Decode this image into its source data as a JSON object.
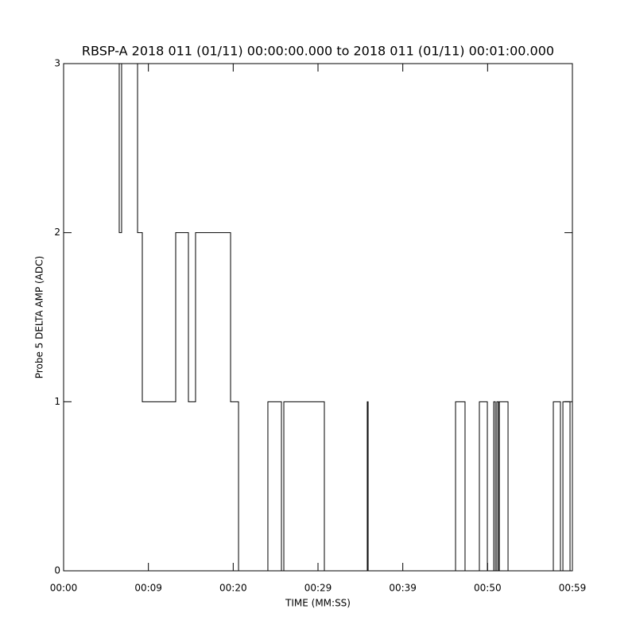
{
  "chart_data": {
    "type": "line",
    "title": "RBSP-A 2018 011 (01/11) 00:00:00.000 to 2018 011 (01/11) 00:01:00.000",
    "x_label": "TIME (MM:SS)",
    "y_label": "Probe 5 DELTA AMP (ADC)",
    "xlim": [
      0,
      60
    ],
    "ylim": [
      0,
      3
    ],
    "xticks": [
      {
        "value": 0,
        "label": "00:00"
      },
      {
        "value": 10,
        "label": "00:09"
      },
      {
        "value": 20,
        "label": "00:20"
      },
      {
        "value": 30,
        "label": "00:29"
      },
      {
        "value": 40,
        "label": "00:39"
      },
      {
        "value": 50,
        "label": "00:50"
      },
      {
        "value": 60,
        "label": "00:59"
      }
    ],
    "yticks": [
      0,
      1,
      2,
      3
    ],
    "color": "#000000",
    "x": [
      0,
      6.56,
      6.56,
      6.84,
      6.84,
      8.72,
      8.72,
      9.28,
      9.28,
      13.22,
      13.22,
      14.72,
      14.72,
      15.56,
      15.56,
      19.69,
      19.69,
      20.63,
      20.63,
      24.09,
      24.09,
      25.69,
      25.69,
      25.97,
      25.97,
      30.75,
      30.75,
      35.81,
      35.81,
      35.91,
      35.91,
      46.22,
      46.22,
      47.34,
      47.34,
      49.03,
      49.03,
      49.97,
      49.97,
      50.72,
      50.72,
      50.91,
      50.91,
      51.09,
      51.09,
      51.28,
      51.28,
      51.38,
      51.38,
      52.41,
      52.41,
      57.75,
      57.75,
      58.59,
      58.59,
      58.88,
      58.88,
      59.72,
      59.72,
      60
    ],
    "values": [
      3,
      3,
      2,
      2,
      3,
      3,
      2,
      2,
      1,
      1,
      2,
      2,
      1,
      1,
      2,
      2,
      1,
      1,
      0,
      0,
      1,
      1,
      0,
      0,
      1,
      1,
      0,
      0,
      1,
      1,
      0,
      0,
      1,
      1,
      0,
      0,
      1,
      1,
      0,
      0,
      1,
      1,
      0,
      0,
      1,
      1,
      0,
      0,
      1,
      1,
      0,
      0,
      1,
      1,
      0,
      0,
      1,
      1,
      0,
      0
    ]
  }
}
